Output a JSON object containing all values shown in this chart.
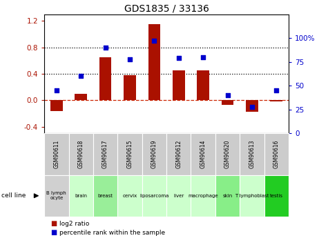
{
  "title": "GDS1835 / 33136",
  "samples": [
    "GSM90611",
    "GSM90618",
    "GSM90617",
    "GSM90615",
    "GSM90619",
    "GSM90612",
    "GSM90614",
    "GSM90620",
    "GSM90613",
    "GSM90616"
  ],
  "cell_lines": [
    "B lymph\nocyte",
    "brain",
    "breast",
    "cervix",
    "liposarcoma",
    "liver",
    "macrophage",
    "skin",
    "T lymphoblast",
    "testis"
  ],
  "cell_line_colors": [
    "#d0d0d0",
    "#ccffcc",
    "#99ee99",
    "#ccffcc",
    "#ccffcc",
    "#ccffcc",
    "#ccffcc",
    "#88ee88",
    "#ccffcc",
    "#22cc22"
  ],
  "gsm_color": "#cccccc",
  "log2_ratio": [
    -0.16,
    0.1,
    0.65,
    0.38,
    1.15,
    0.45,
    0.45,
    -0.07,
    -0.17,
    -0.02
  ],
  "percentile_rank": [
    45,
    60,
    90,
    78,
    97,
    79,
    80,
    40,
    28,
    45
  ],
  "bar_color": "#aa1100",
  "dot_color": "#0000cc",
  "ylim_left": [
    -0.5,
    1.3
  ],
  "ylim_right": [
    0,
    125
  ],
  "yticks_left": [
    -0.4,
    0.0,
    0.4,
    0.8,
    1.2
  ],
  "yticks_right": [
    0,
    25,
    50,
    75,
    100
  ],
  "hlines": [
    0.0,
    0.4,
    0.8
  ],
  "hline_styles": [
    "--",
    ":",
    ":"
  ],
  "hline_colors": [
    "#cc2200",
    "#000000",
    "#000000"
  ],
  "background_color": "#ffffff",
  "title_fontsize": 10,
  "bar_width": 0.5
}
